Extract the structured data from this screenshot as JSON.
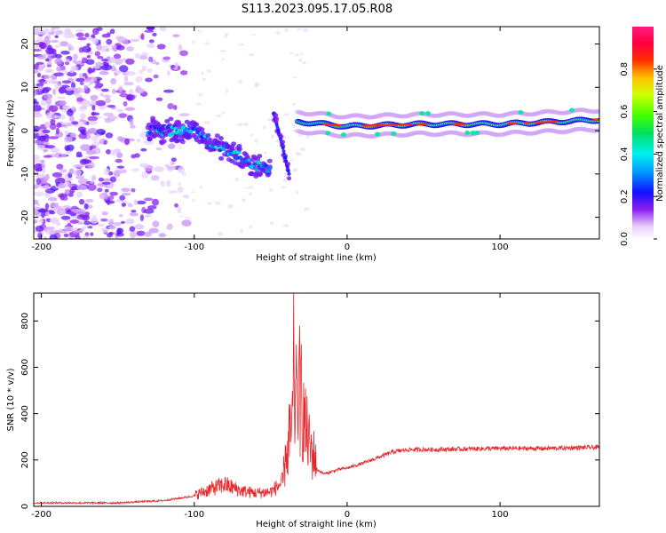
{
  "title": "S113.2023.095.17.05.R08",
  "colors": {
    "snr_line": "#e8252a",
    "low": "#8a1cf0",
    "mid": "#00e0ff",
    "high": "#ff1a1a"
  },
  "chart_data": [
    {
      "type": "heatmap",
      "xlabel": "Height of straight line (km)",
      "ylabel": "Frequency (Hz)",
      "xlim": [
        -205,
        165
      ],
      "ylim": [
        -25,
        24
      ],
      "xticks": [
        -200,
        -100,
        0,
        100
      ],
      "yticks": [
        -20,
        -10,
        0,
        10,
        20
      ],
      "colorbar": {
        "label": "Normalized spectral amplitude",
        "range": [
          0,
          1
        ],
        "ticks": [
          0.0,
          0.2,
          0.4,
          0.6,
          0.8
        ],
        "colormap": "hsv-rainbow (white-violet-blue-cyan-green-yellow-red-magenta)"
      },
      "features": [
        {
          "name": "noise",
          "x_range": [
            -205,
            -110
          ],
          "freq_range": [
            -25,
            24
          ],
          "amplitude": 0.05
        },
        {
          "name": "descending trace",
          "points": [
            [
              -130,
              0
            ],
            [
              -100,
              0
            ],
            [
              -90,
              -3
            ],
            [
              -75,
              -5
            ],
            [
              -60,
              -8
            ],
            [
              -50,
              -9
            ]
          ],
          "amplitude": 0.4
        },
        {
          "name": "steep trace",
          "points": [
            [
              -48,
              4
            ],
            [
              -42,
              -4
            ],
            [
              -38,
              -10
            ]
          ],
          "amplitude": 0.2
        },
        {
          "name": "carrier",
          "points": [
            [
              -30,
              2
            ],
            [
              0,
              1
            ],
            [
              50,
              1.5
            ],
            [
              100,
              1.5
            ],
            [
              165,
              2.5
            ]
          ],
          "amplitude": 0.9
        }
      ]
    },
    {
      "type": "line",
      "xlabel": "Height of straight line (km)",
      "ylabel": "SNR (10 * v/v)",
      "xlim": [
        -205,
        165
      ],
      "ylim": [
        0,
        920
      ],
      "xticks": [
        -200,
        -100,
        0,
        100
      ],
      "yticks": [
        0,
        200,
        400,
        600,
        800
      ],
      "series": [
        {
          "envelope": [
            [
              -205,
              15
            ],
            [
              -150,
              15
            ],
            [
              -120,
              25
            ],
            [
              -100,
              45
            ],
            [
              -90,
              70
            ],
            [
              -80,
              90
            ],
            [
              -70,
              65
            ],
            [
              -60,
              55
            ],
            [
              -50,
              60
            ],
            [
              -42,
              100
            ],
            [
              -38,
              200
            ],
            [
              -35,
              320
            ],
            [
              -32,
              380
            ],
            [
              -30,
              330
            ],
            [
              -27,
              260
            ],
            [
              -24,
              190
            ],
            [
              -20,
              160
            ],
            [
              -15,
              140
            ],
            [
              -10,
              150
            ],
            [
              -5,
              160
            ],
            [
              0,
              165
            ],
            [
              10,
              185
            ],
            [
              20,
              210
            ],
            [
              30,
              235
            ],
            [
              40,
              245
            ],
            [
              60,
              245
            ],
            [
              80,
              248
            ],
            [
              100,
              250
            ],
            [
              130,
              250
            ],
            [
              165,
              255
            ]
          ],
          "peaks": [
            [
              -35,
              920
            ],
            [
              -33,
              600
            ],
            [
              -31,
              780
            ],
            [
              -30,
              700
            ],
            [
              -28,
              470
            ],
            [
              -26,
              350
            ],
            [
              -38,
              440
            ],
            [
              -40,
              260
            ]
          ]
        }
      ]
    }
  ]
}
